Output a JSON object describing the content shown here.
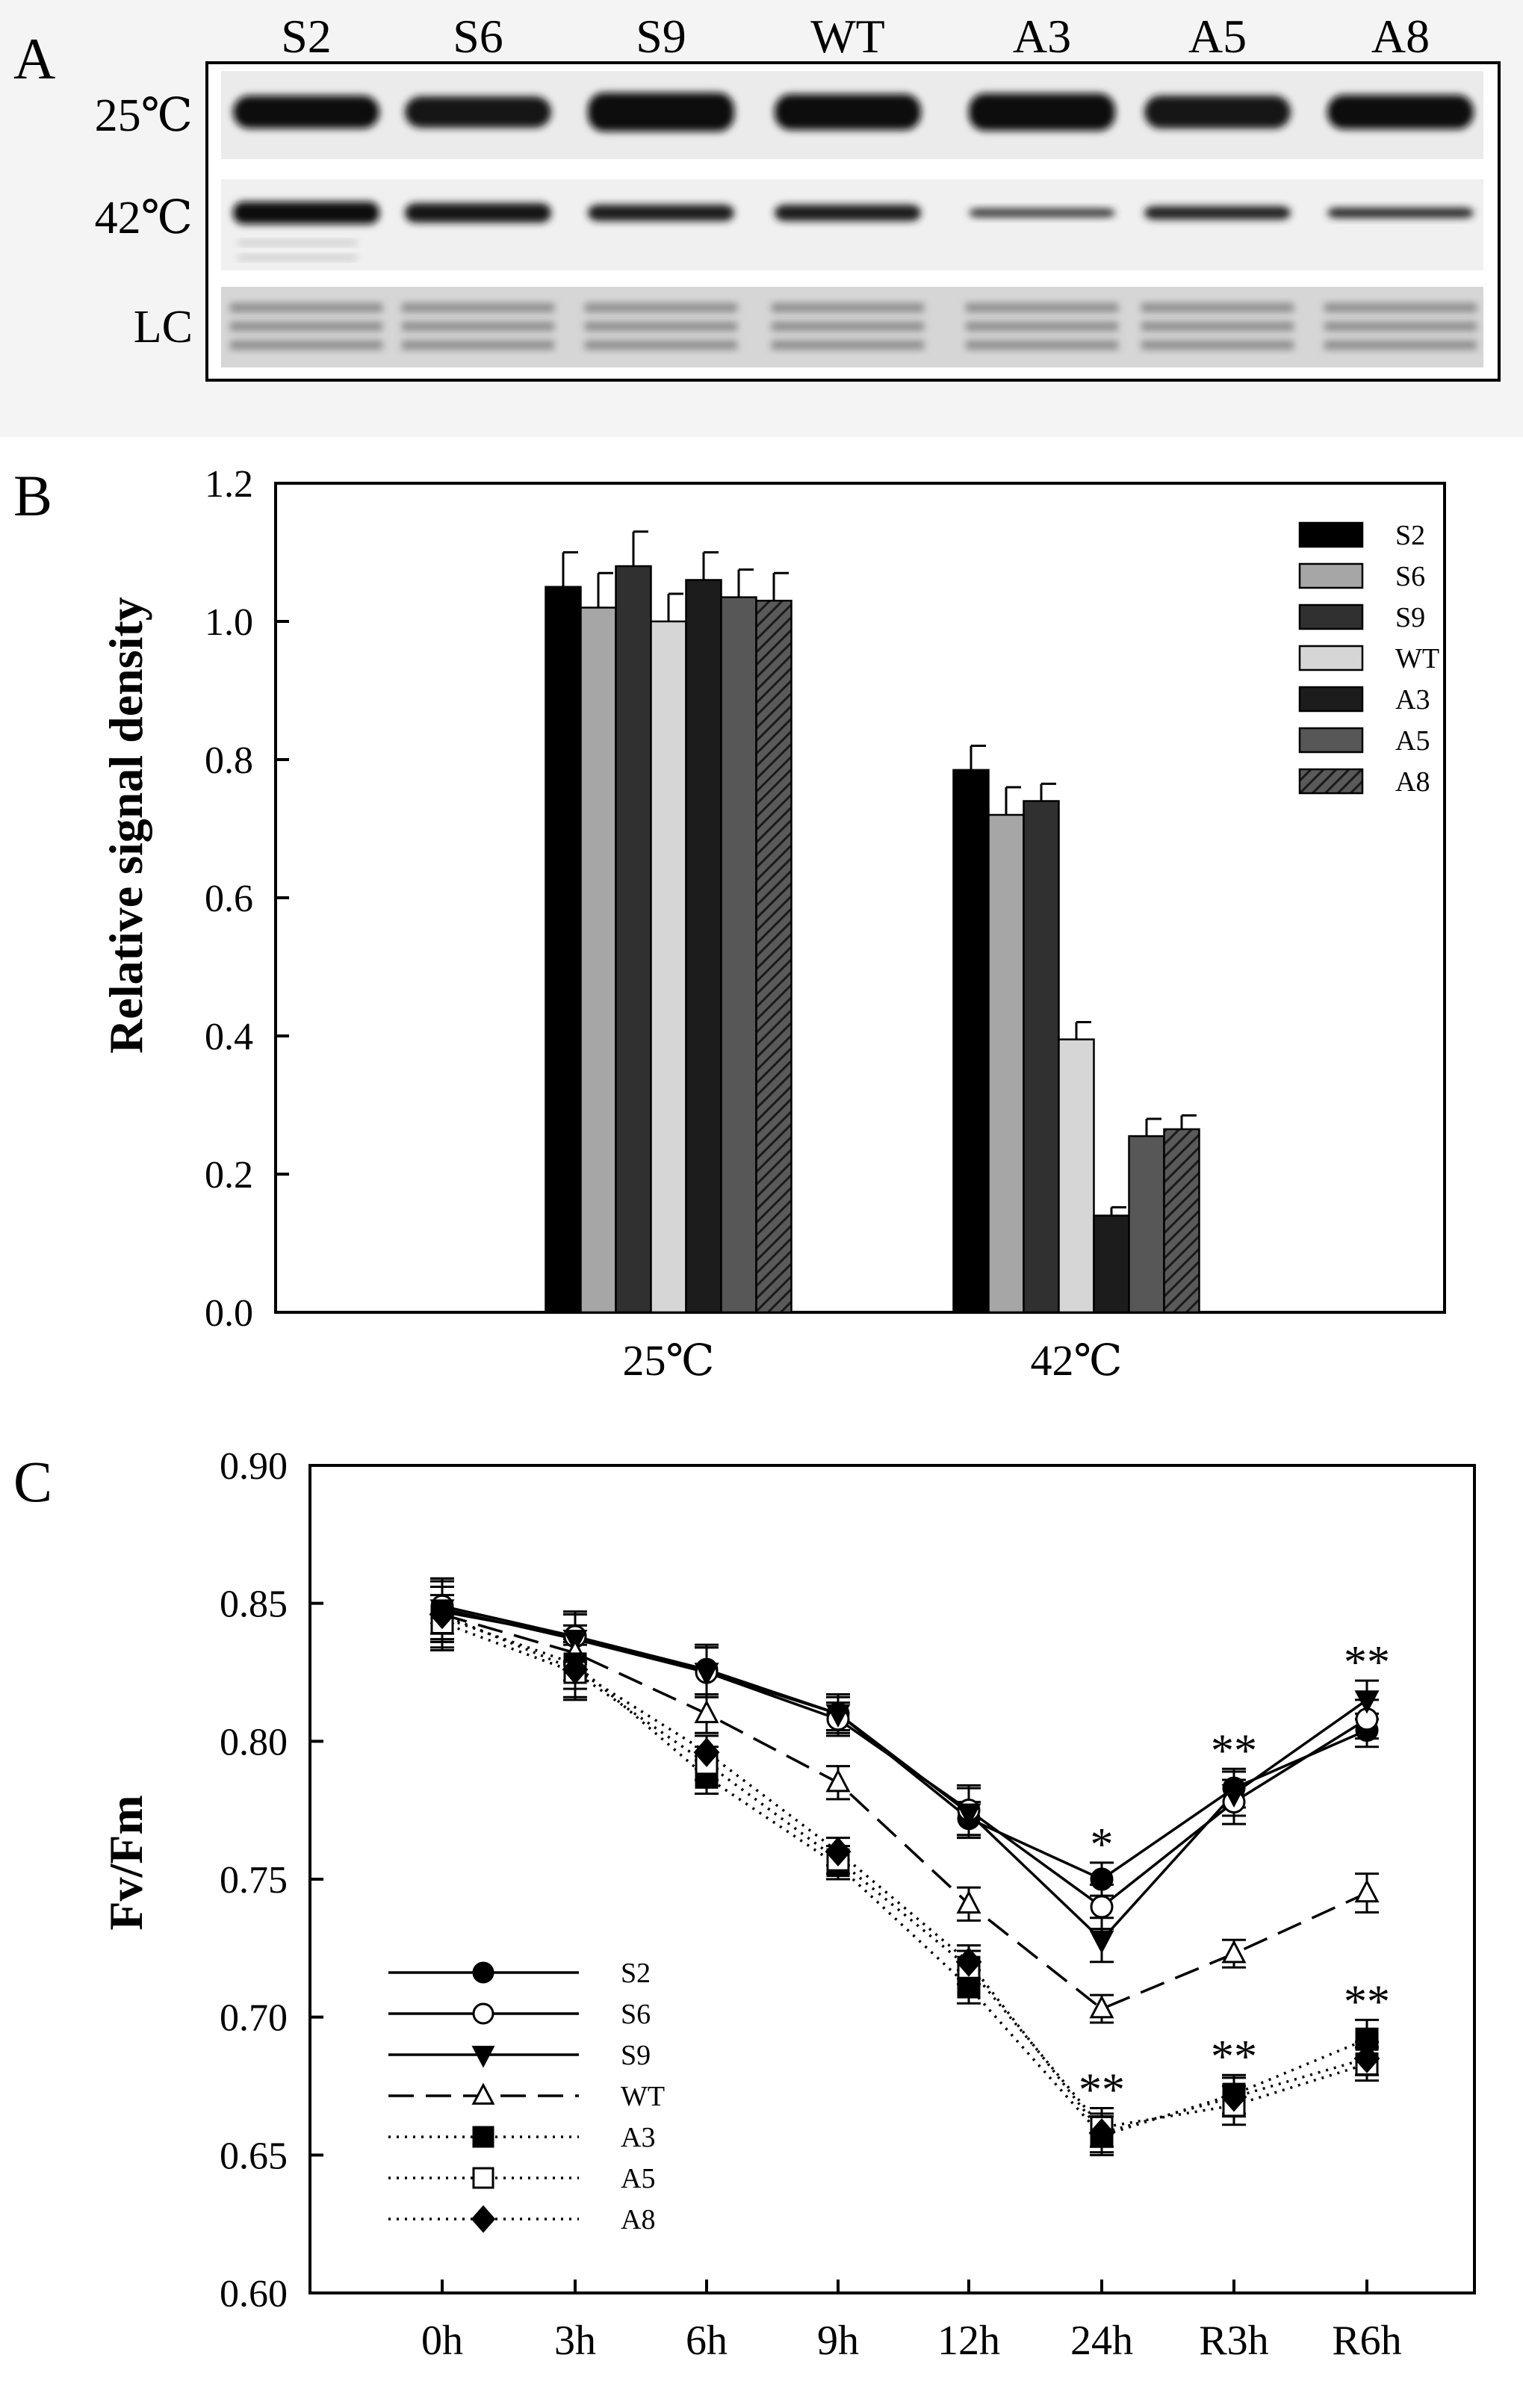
{
  "panel_a": {
    "label": "A",
    "lanes": [
      "S2",
      "S6",
      "S9",
      "WT",
      "A3",
      "A5",
      "A8"
    ],
    "rows": [
      "25℃",
      "42℃",
      "LC"
    ]
  },
  "chart_data": [
    {
      "type": "bar",
      "panel_label": "B",
      "title": "",
      "xlabel": "",
      "ylabel": "Relative signal density",
      "ylim": [
        0,
        1.2
      ],
      "yticks": [
        0.0,
        0.2,
        0.4,
        0.6,
        0.8,
        1.0,
        1.2
      ],
      "yticklabels": [
        "0.0",
        "0.2",
        "0.4",
        "0.6",
        "0.8",
        "1.0",
        "1.2"
      ],
      "categories": [
        "25℃",
        "42℃"
      ],
      "legend_position": "top-right",
      "series": [
        {
          "name": "S2",
          "values": [
            1.05,
            0.785
          ],
          "errors": [
            0.05,
            0.035
          ],
          "color": "#000000"
        },
        {
          "name": "S6",
          "values": [
            1.02,
            0.72
          ],
          "errors": [
            0.05,
            0.04
          ],
          "color": "#a6a6a6"
        },
        {
          "name": "S9",
          "values": [
            1.08,
            0.74
          ],
          "errors": [
            0.05,
            0.025
          ],
          "color": "#303030"
        },
        {
          "name": "WT",
          "values": [
            1.0,
            0.395
          ],
          "errors": [
            0.04,
            0.025
          ],
          "color": "#d6d6d6"
        },
        {
          "name": "A3",
          "values": [
            1.06,
            0.14
          ],
          "errors": [
            0.04,
            0.012
          ],
          "color": "#1c1c1c"
        },
        {
          "name": "A5",
          "values": [
            1.035,
            0.255
          ],
          "errors": [
            0.04,
            0.025
          ],
          "color": "#575757"
        },
        {
          "name": "A8",
          "values": [
            1.03,
            0.265
          ],
          "errors": [
            0.04,
            0.02
          ],
          "color": "hatch"
        }
      ]
    },
    {
      "type": "line",
      "panel_label": "C",
      "title": "",
      "xlabel": "",
      "ylabel": "Fv/Fm",
      "ylim": [
        0.6,
        0.9
      ],
      "yticks": [
        0.6,
        0.65,
        0.7,
        0.75,
        0.8,
        0.85,
        0.9
      ],
      "yticklabels": [
        "0.60",
        "0.65",
        "0.70",
        "0.75",
        "0.80",
        "0.85",
        "0.90"
      ],
      "categories": [
        "0h",
        "3h",
        "6h",
        "9h",
        "12h",
        "24h",
        "R3h",
        "R6h"
      ],
      "legend_position": "bottom-left",
      "series": [
        {
          "name": "S2",
          "marker": "filled-circle",
          "line": "solid",
          "values": [
            0.847,
            0.838,
            0.826,
            0.81,
            0.772,
            0.75,
            0.783,
            0.804
          ],
          "errors": [
            0.011,
            0.009,
            0.009,
            0.006,
            0.006,
            0.006,
            0.007,
            0.006
          ]
        },
        {
          "name": "S6",
          "marker": "open-circle",
          "line": "solid",
          "values": [
            0.849,
            0.838,
            0.825,
            0.808,
            0.775,
            0.74,
            0.778,
            0.808
          ],
          "errors": [
            0.01,
            0.009,
            0.009,
            0.006,
            0.009,
            0.008,
            0.008,
            0.007
          ]
        },
        {
          "name": "S9",
          "marker": "filled-triangle-down",
          "line": "solid",
          "values": [
            0.848,
            0.837,
            0.825,
            0.81,
            0.774,
            0.728,
            0.781,
            0.815
          ],
          "errors": [
            0.011,
            0.009,
            0.009,
            0.007,
            0.009,
            0.008,
            0.008,
            0.007
          ]
        },
        {
          "name": "WT",
          "marker": "open-triangle-up",
          "line": "dashed",
          "values": [
            0.846,
            0.832,
            0.81,
            0.785,
            0.741,
            0.703,
            0.723,
            0.745
          ],
          "errors": [
            0.01,
            0.01,
            0.007,
            0.006,
            0.006,
            0.005,
            0.005,
            0.007
          ]
        },
        {
          "name": "A3",
          "marker": "filled-square",
          "line": "dotted",
          "values": [
            0.845,
            0.828,
            0.787,
            0.755,
            0.711,
            0.657,
            0.672,
            0.692
          ],
          "errors": [
            0.011,
            0.009,
            0.006,
            0.005,
            0.006,
            0.007,
            0.007,
            0.007
          ]
        },
        {
          "name": "A5",
          "marker": "open-square",
          "line": "dotted",
          "values": [
            0.843,
            0.825,
            0.792,
            0.757,
            0.718,
            0.66,
            0.668,
            0.683
          ],
          "errors": [
            0.01,
            0.01,
            0.006,
            0.005,
            0.006,
            0.007,
            0.007,
            0.006
          ]
        },
        {
          "name": "A8",
          "marker": "filled-diamond",
          "line": "dotted",
          "values": [
            0.846,
            0.826,
            0.796,
            0.76,
            0.72,
            0.658,
            0.671,
            0.685
          ],
          "errors": [
            0.01,
            0.01,
            0.006,
            0.005,
            0.006,
            0.007,
            0.007,
            0.006
          ]
        }
      ],
      "annotations": [
        {
          "category": "24h",
          "text": "*",
          "group": "upper"
        },
        {
          "category": "24h",
          "text": "**",
          "group": "lower"
        },
        {
          "category": "R3h",
          "text": "**",
          "group": "upper"
        },
        {
          "category": "R3h",
          "text": "**",
          "group": "lower"
        },
        {
          "category": "R6h",
          "text": "**",
          "group": "upper"
        },
        {
          "category": "R6h",
          "text": "**",
          "group": "lower"
        }
      ]
    }
  ]
}
